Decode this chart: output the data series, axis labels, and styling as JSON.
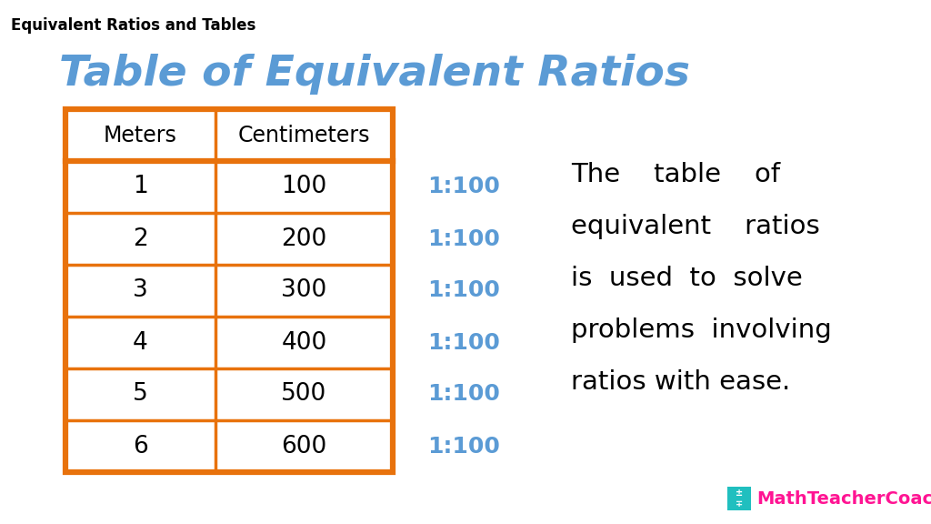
{
  "title_small": "Equivalent Ratios and Tables",
  "title_main": "Table of Equivalent Ratios",
  "col_headers": [
    "Meters",
    "Centimeters"
  ],
  "rows": [
    [
      "1",
      "100"
    ],
    [
      "2",
      "200"
    ],
    [
      "3",
      "300"
    ],
    [
      "4",
      "400"
    ],
    [
      "5",
      "500"
    ],
    [
      "6",
      "600"
    ]
  ],
  "ratios": [
    "1:100",
    "1:100",
    "1:100",
    "1:100",
    "1:100",
    "1:100"
  ],
  "desc_lines": [
    "The    table    of",
    "equivalent    ratios",
    "is  used  to  solve",
    "problems  involving",
    "ratios with ease."
  ],
  "table_border_color": "#E8720C",
  "table_text_color": "#000000",
  "ratio_text_color": "#5B9BD5",
  "title_main_color": "#5B9BD5",
  "title_small_color": "#000000",
  "desc_text_color": "#000000",
  "brand_color": "#FF1493",
  "brand_bg_color": "#20BFBF",
  "background_color": "#FFFFFF",
  "watermark_text": "MathTeacherCoach.com"
}
